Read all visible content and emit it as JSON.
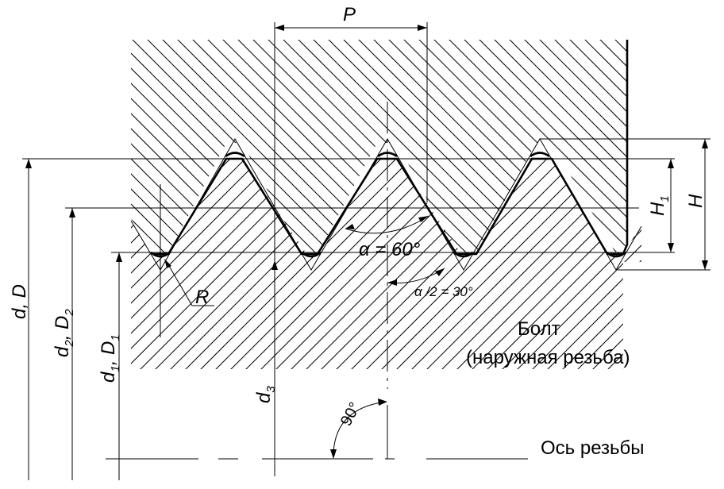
{
  "labels": {
    "pitch": "P",
    "angle": "α = 60°",
    "half_angle": "α /2 = 30°",
    "radius": "R",
    "h1": "H",
    "h1_sub": "1",
    "h": "H",
    "bolt_title": "Болт",
    "bolt_subtitle": "(наружная резьба)",
    "axis": "Ось резьбы",
    "right_angle": "90°",
    "d_major": "d, D",
    "d2_d": "d",
    "d2_d_sub": "2",
    "d2_D": ", D",
    "d2_D_sub": "2",
    "d1_d": "d",
    "d1_d_sub": "1",
    "d1_D": ", D",
    "d1_D_sub": "1",
    "d3": "d",
    "d3_sub": "3"
  },
  "colors": {
    "line": "#000000",
    "background": "#ffffff"
  }
}
